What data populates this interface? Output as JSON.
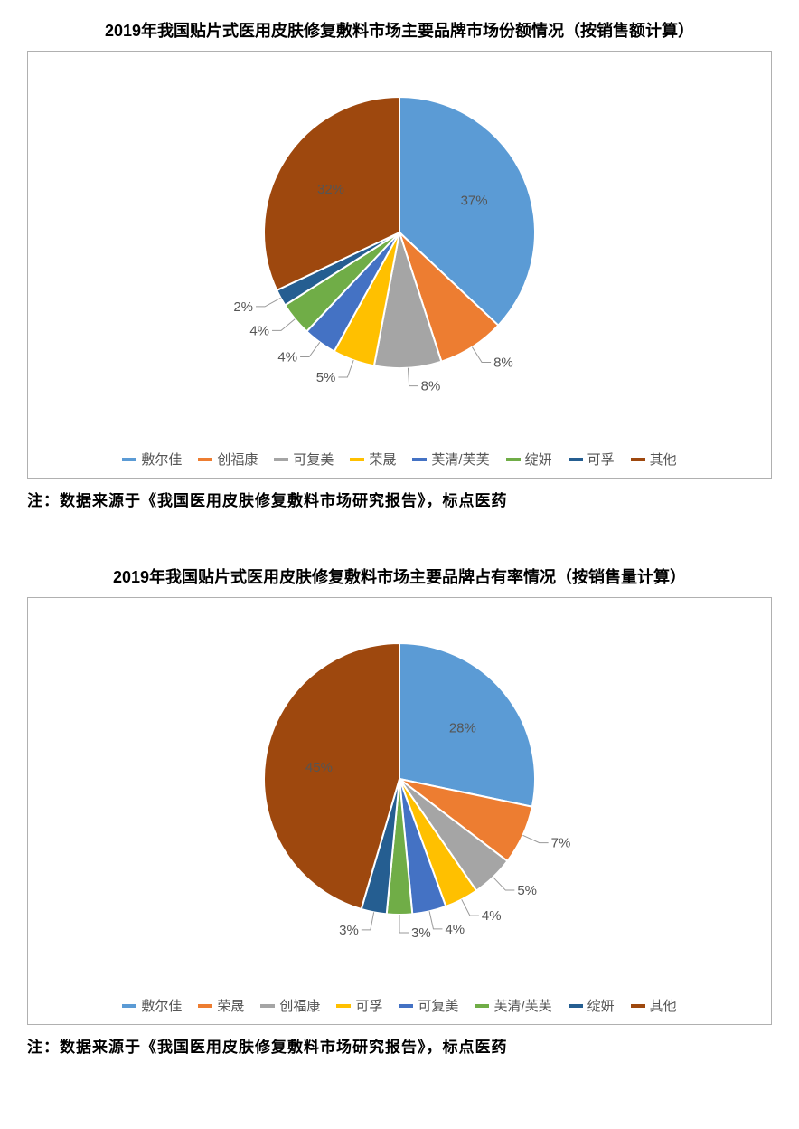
{
  "chart1": {
    "type": "pie",
    "title": "2019年我国贴片式医用皮肤修复敷料市场主要品牌市场份额情况（按销售额计算）",
    "note": "注：数据来源于《我国医用皮肤修复敷料市场研究报告》，标点医药",
    "background_color": "#ffffff",
    "border_color": "#b0b0b0",
    "title_fontsize": 18,
    "label_fontsize": 15,
    "label_color": "#555555",
    "slices": [
      {
        "label": "敷尔佳",
        "value": 37,
        "color": "#5b9bd5",
        "display": "37%"
      },
      {
        "label": "创福康",
        "value": 8,
        "color": "#ed7d31",
        "display": "8%"
      },
      {
        "label": "可复美",
        "value": 8,
        "color": "#a5a5a5",
        "display": "8%"
      },
      {
        "label": "荣晟",
        "value": 5,
        "color": "#ffc000",
        "display": "5%"
      },
      {
        "label": "芙清/芙芙",
        "value": 4,
        "color": "#4472c4",
        "display": "4%"
      },
      {
        "label": "绽妍",
        "value": 4,
        "color": "#70ad47",
        "display": "4%"
      },
      {
        "label": "可孚",
        "value": 2,
        "color": "#255e91",
        "display": "2%"
      },
      {
        "label": "其他",
        "value": 32,
        "color": "#9e480e",
        "display": "32%"
      }
    ],
    "legend_order": [
      "敷尔佳",
      "创福康",
      "可复美",
      "荣晟",
      "芙清/芙芙",
      "绽妍",
      "可孚",
      "其他"
    ]
  },
  "chart2": {
    "type": "pie",
    "title": "2019年我国贴片式医用皮肤修复敷料市场主要品牌占有率情况（按销售量计算）",
    "note": "注：数据来源于《我国医用皮肤修复敷料市场研究报告》，标点医药",
    "background_color": "#ffffff",
    "border_color": "#b0b0b0",
    "title_fontsize": 18,
    "label_fontsize": 15,
    "label_color": "#555555",
    "slices": [
      {
        "label": "敷尔佳",
        "value": 28,
        "color": "#5b9bd5",
        "display": "28%"
      },
      {
        "label": "荣晟",
        "value": 7,
        "color": "#ed7d31",
        "display": "7%"
      },
      {
        "label": "创福康",
        "value": 5,
        "color": "#a5a5a5",
        "display": "5%"
      },
      {
        "label": "可孚",
        "value": 4,
        "color": "#ffc000",
        "display": "4%"
      },
      {
        "label": "可复美",
        "value": 4,
        "color": "#4472c4",
        "display": "4%"
      },
      {
        "label": "芙清/芙芙",
        "value": 3,
        "color": "#70ad47",
        "display": "3%"
      },
      {
        "label": "绽妍",
        "value": 3,
        "color": "#255e91",
        "display": "3%"
      },
      {
        "label": "其他",
        "value": 45,
        "color": "#9e480e",
        "display": "45%"
      }
    ],
    "legend_order": [
      "敷尔佳",
      "荣晟",
      "创福康",
      "可孚",
      "可复美",
      "芙清/芙芙",
      "绽妍",
      "其他"
    ]
  }
}
